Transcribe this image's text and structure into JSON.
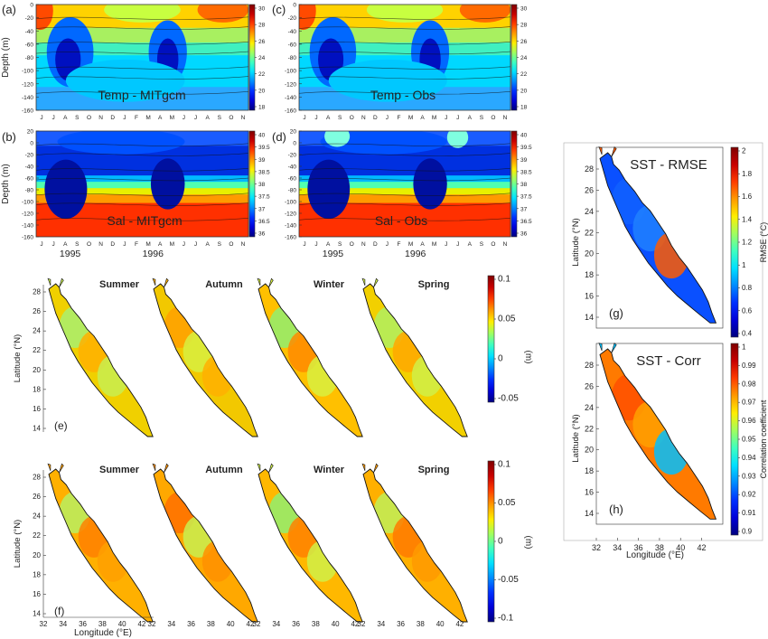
{
  "colors": {
    "jet": [
      "#00007f",
      "#0000d9",
      "#0030ff",
      "#008cff",
      "#00e0ff",
      "#3fffbf",
      "#a0ff5f",
      "#ffee00",
      "#ff9a00",
      "#ff3c00",
      "#c80000",
      "#7f0000"
    ],
    "land": "#ffffff",
    "outline": "#111111"
  },
  "chart_data": [
    {
      "panel": "(a)",
      "type": "heatmap",
      "title": "Temp - MITgcm",
      "ylabel": "Depth (m)",
      "yticks": [
        "0",
        "-20",
        "-40",
        "-60",
        "-80",
        "-100",
        "-120",
        "-140",
        "-160"
      ],
      "ylim": [
        -160,
        0
      ],
      "months": [
        "J",
        "J",
        "A",
        "S",
        "O",
        "N",
        "D",
        "J",
        "F",
        "M",
        "A",
        "M",
        "J",
        "J",
        "A",
        "S",
        "O",
        "N"
      ],
      "colorbar_ticks": [
        "30",
        "28",
        "26",
        "24",
        "22",
        "20",
        "18"
      ],
      "clim": [
        17,
        31
      ]
    },
    {
      "panel": "(c)",
      "type": "heatmap",
      "title": "Temp - Obs",
      "yticks": [
        "0",
        "-20",
        "-40",
        "-60",
        "-80",
        "-100",
        "-120",
        "-140",
        "-160"
      ],
      "ylim": [
        -160,
        0
      ],
      "months": [
        "J",
        "J",
        "A",
        "S",
        "O",
        "N",
        "D",
        "J",
        "F",
        "M",
        "A",
        "M",
        "J",
        "J",
        "A",
        "S",
        "O",
        "N"
      ],
      "colorbar_ticks": [
        "30",
        "28",
        "26",
        "24",
        "22",
        "20",
        "18"
      ],
      "clim": [
        17,
        31
      ]
    },
    {
      "panel": "(b)",
      "type": "heatmap",
      "title": "Sal - MITgcm",
      "ylabel": "Depth (m)",
      "yticks": [
        "20",
        "0",
        "-20",
        "-40",
        "-60",
        "-80",
        "-100",
        "-120",
        "-140",
        "-160"
      ],
      "ylim": [
        -160,
        20
      ],
      "months": [
        "J",
        "J",
        "A",
        "S",
        "O",
        "N",
        "D",
        "J",
        "F",
        "M",
        "A",
        "M",
        "J",
        "J",
        "A",
        "S",
        "O",
        "N"
      ],
      "years": [
        "1995",
        "1996"
      ],
      "colorbar_ticks": [
        "40",
        "39.5",
        "39",
        "38.5",
        "38",
        "37.5",
        "37",
        "36.5",
        "36"
      ],
      "clim": [
        35.8,
        40.2
      ]
    },
    {
      "panel": "(d)",
      "type": "heatmap",
      "title": "Sal - Obs",
      "yticks": [
        "20",
        "0",
        "-20",
        "-40",
        "-60",
        "-80",
        "-100",
        "-120",
        "-140",
        "-160"
      ],
      "ylim": [
        -160,
        20
      ],
      "months": [
        "J",
        "J",
        "A",
        "S",
        "O",
        "N",
        "D",
        "J",
        "F",
        "M",
        "A",
        "M",
        "J",
        "J",
        "A",
        "S",
        "O",
        "N"
      ],
      "years": [
        "1995",
        "1996"
      ],
      "colorbar_ticks": [
        "40",
        "39.5",
        "39",
        "38.5",
        "38",
        "37.5",
        "37",
        "36.5",
        "36"
      ],
      "clim": [
        35.8,
        40.2
      ]
    },
    {
      "panel": "(e)",
      "type": "heatmap",
      "maps": [
        "Summer",
        "Autumn",
        "Winter",
        "Spring"
      ],
      "ylabel": "Latitude (°N)",
      "yticks": [
        "28",
        "26",
        "24",
        "22",
        "20",
        "18",
        "16",
        "14"
      ],
      "ylim": [
        13,
        29.5
      ],
      "colorbar_ticks": [
        "0.1",
        "0.05",
        "0",
        "-0.05"
      ],
      "colorbar_unit": "(m)",
      "clim": [
        -0.1,
        0.1
      ]
    },
    {
      "panel": "(f)",
      "type": "heatmap",
      "maps": [
        "Summer",
        "Autumn",
        "Winter",
        "Spring"
      ],
      "ylabel": "Latitude (°N)",
      "xlabel": "Longitude (°E)",
      "yticks": [
        "28",
        "26",
        "24",
        "22",
        "20",
        "18",
        "16",
        "14"
      ],
      "xticks": [
        "32",
        "34",
        "36",
        "38",
        "40",
        "42"
      ],
      "ylim": [
        13,
        29.5
      ],
      "xlim": [
        32,
        43.5
      ],
      "colorbar_ticks": [
        "0.1",
        "0.05",
        "0",
        "-0.05",
        "-0.1"
      ],
      "colorbar_unit": "(m)",
      "clim": [
        -0.1,
        0.1
      ]
    },
    {
      "panel": "(g)",
      "type": "heatmap",
      "title": "SST - RMSE",
      "ylabel": "Latitude (°N)",
      "yticks": [
        "28",
        "26",
        "24",
        "22",
        "20",
        "18",
        "16",
        "14"
      ],
      "ylim": [
        13,
        29.5
      ],
      "colorbar_label": "RMSE (°C)",
      "colorbar_ticks": [
        "2",
        "1.8",
        "1.6",
        "1.4",
        "1.2",
        "1",
        "0.8",
        "0.6",
        "0.4"
      ],
      "clim": [
        0.4,
        2
      ]
    },
    {
      "panel": "(h)",
      "type": "heatmap",
      "title": "SST - Corr",
      "ylabel": "Latitude (°N)",
      "xlabel": "Longitude (°E)",
      "yticks": [
        "28",
        "26",
        "24",
        "22",
        "20",
        "18",
        "16",
        "14"
      ],
      "xticks": [
        "32",
        "34",
        "36",
        "38",
        "40",
        "42"
      ],
      "ylim": [
        13,
        29.5
      ],
      "xlim": [
        32,
        43.5
      ],
      "colorbar_label": "Correlation coefficient",
      "colorbar_ticks": [
        "1",
        "0.99",
        "0.98",
        "0.97",
        "0.96",
        "0.95",
        "0.94",
        "0.93",
        "0.92",
        "0.91",
        "0.9"
      ],
      "clim": [
        0.9,
        1
      ]
    }
  ]
}
